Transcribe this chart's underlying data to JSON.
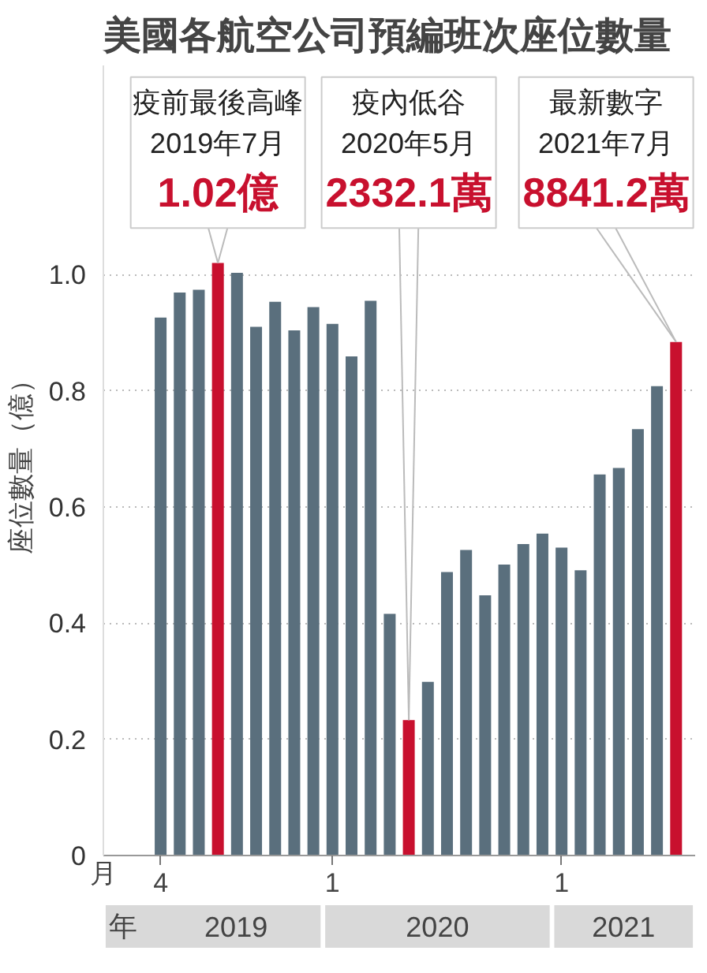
{
  "chart_data": {
    "type": "bar",
    "title": "美國各航空公司預編班次座位數量",
    "ylabel": "座位數量（億）",
    "xlabel": "月",
    "x": [
      "2019-04",
      "2019-05",
      "2019-06",
      "2019-07",
      "2019-08",
      "2019-09",
      "2019-10",
      "2019-11",
      "2019-12",
      "2020-01",
      "2020-02",
      "2020-03",
      "2020-04",
      "2020-05",
      "2020-06",
      "2020-07",
      "2020-08",
      "2020-09",
      "2020-10",
      "2020-11",
      "2020-12",
      "2021-01",
      "2021-02",
      "2021-03",
      "2021-04",
      "2021-05",
      "2021-06",
      "2021-07"
    ],
    "values": [
      0.926,
      0.969,
      0.974,
      1.02,
      1.003,
      0.91,
      0.953,
      0.904,
      0.944,
      0.915,
      0.859,
      0.955,
      0.416,
      0.2332,
      0.299,
      0.488,
      0.526,
      0.448,
      0.501,
      0.536,
      0.554,
      0.53,
      0.491,
      0.656,
      0.667,
      0.734,
      0.808,
      0.8841
    ],
    "colors": [
      "#5a6f7d",
      "#5a6f7d",
      "#5a6f7d",
      "#c8102e",
      "#5a6f7d",
      "#5a6f7d",
      "#5a6f7d",
      "#5a6f7d",
      "#5a6f7d",
      "#5a6f7d",
      "#5a6f7d",
      "#5a6f7d",
      "#5a6f7d",
      "#c8102e",
      "#5a6f7d",
      "#5a6f7d",
      "#5a6f7d",
      "#5a6f7d",
      "#5a6f7d",
      "#5a6f7d",
      "#5a6f7d",
      "#5a6f7d",
      "#5a6f7d",
      "#5a6f7d",
      "#5a6f7d",
      "#5a6f7d",
      "#5a6f7d",
      "#c8102e"
    ],
    "xlim": [
      "2019-01",
      "2021-08"
    ],
    "xticks": [
      {
        "value": "2019-04",
        "label": "4"
      },
      {
        "value": "2020-01",
        "label": "1"
      },
      {
        "value": "2021-01",
        "label": "1"
      }
    ],
    "yticks": [
      0,
      0.2,
      0.4,
      0.6,
      0.8,
      {
        "value": 1,
        "label": "1.0"
      }
    ],
    "ylim": [
      0,
      1.36
    ],
    "grid": "y",
    "annotations": [
      "年",
      "2019",
      "2020",
      "2021",
      {
        "text": "疫前最後高峰\n2019年7月\n1.02億",
        "x": "2019-07",
        "y": 1.02
      },
      {
        "text": "疫內低谷\n2020年5月\n2332.1萬",
        "x": "2020-05",
        "y": 0.2332
      },
      {
        "text": "最新數字\n2021年7月\n8841.2萬",
        "x": "2021-07",
        "y": 0.8841
      }
    ]
  }
}
